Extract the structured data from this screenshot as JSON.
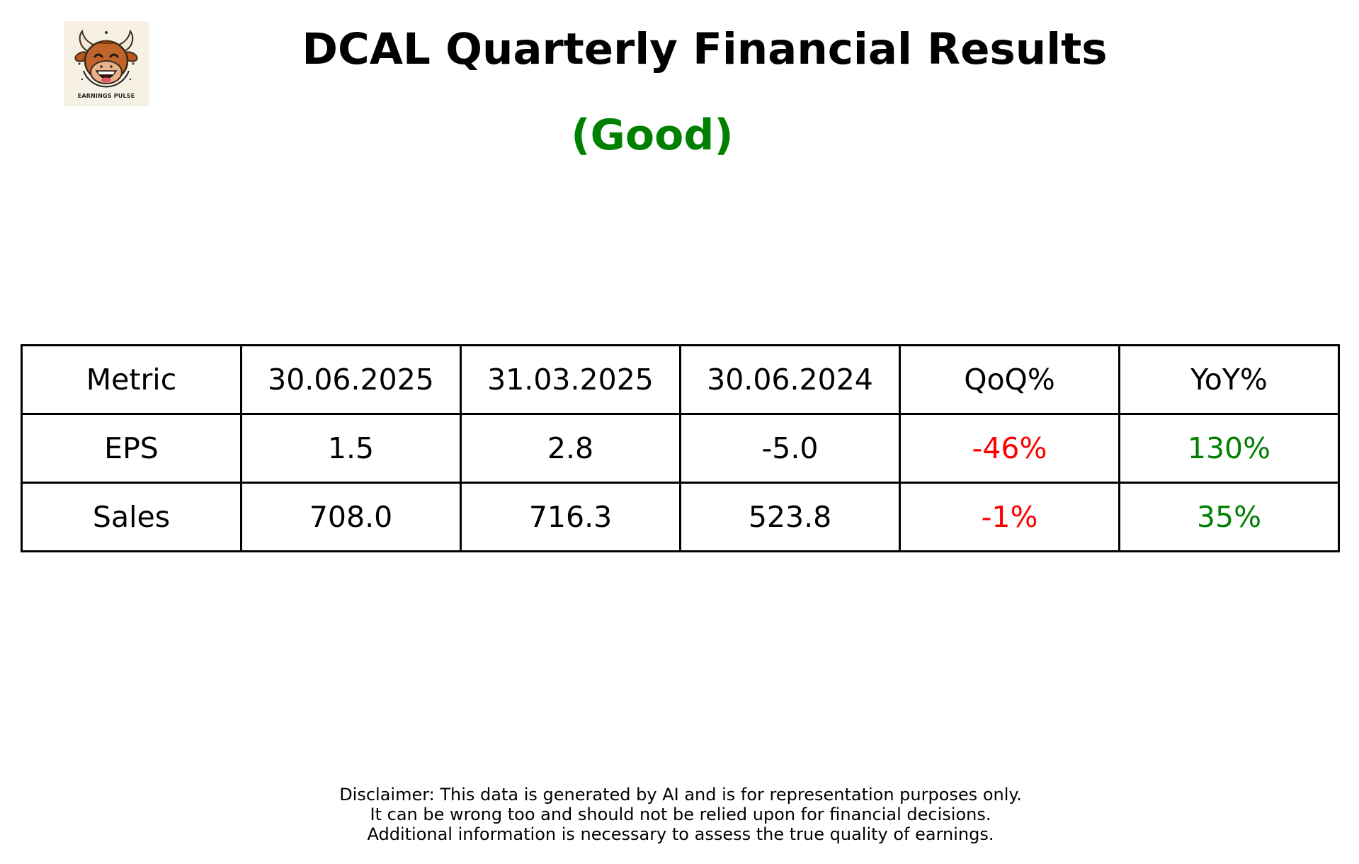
{
  "header": {
    "logo_text": "EARNINGS PULSE",
    "title": "DCAL Quarterly Financial Results",
    "rating": "(Good)",
    "rating_color": "#008000"
  },
  "chart_data": {
    "type": "table",
    "columns": [
      "Metric",
      "30.06.2025",
      "31.03.2025",
      "30.06.2024",
      "QoQ%",
      "YoY%"
    ],
    "rows": [
      {
        "metric": "EPS",
        "values": [
          "1.5",
          "2.8",
          "-5.0"
        ],
        "qoq": "-46%",
        "yoy": "130%"
      },
      {
        "metric": "Sales",
        "values": [
          "708.0",
          "716.3",
          "523.8"
        ],
        "qoq": "-1%",
        "yoy": "35%"
      }
    ]
  },
  "colors": {
    "negative": "#ff0000",
    "positive": "#008000"
  },
  "disclaimer": {
    "lines": [
      "Disclaimer: This data is generated by AI and is for representation purposes only.",
      "It can be wrong too and should not be relied upon for financial decisions.",
      "Additional information is necessary to assess the true quality of earnings."
    ]
  }
}
